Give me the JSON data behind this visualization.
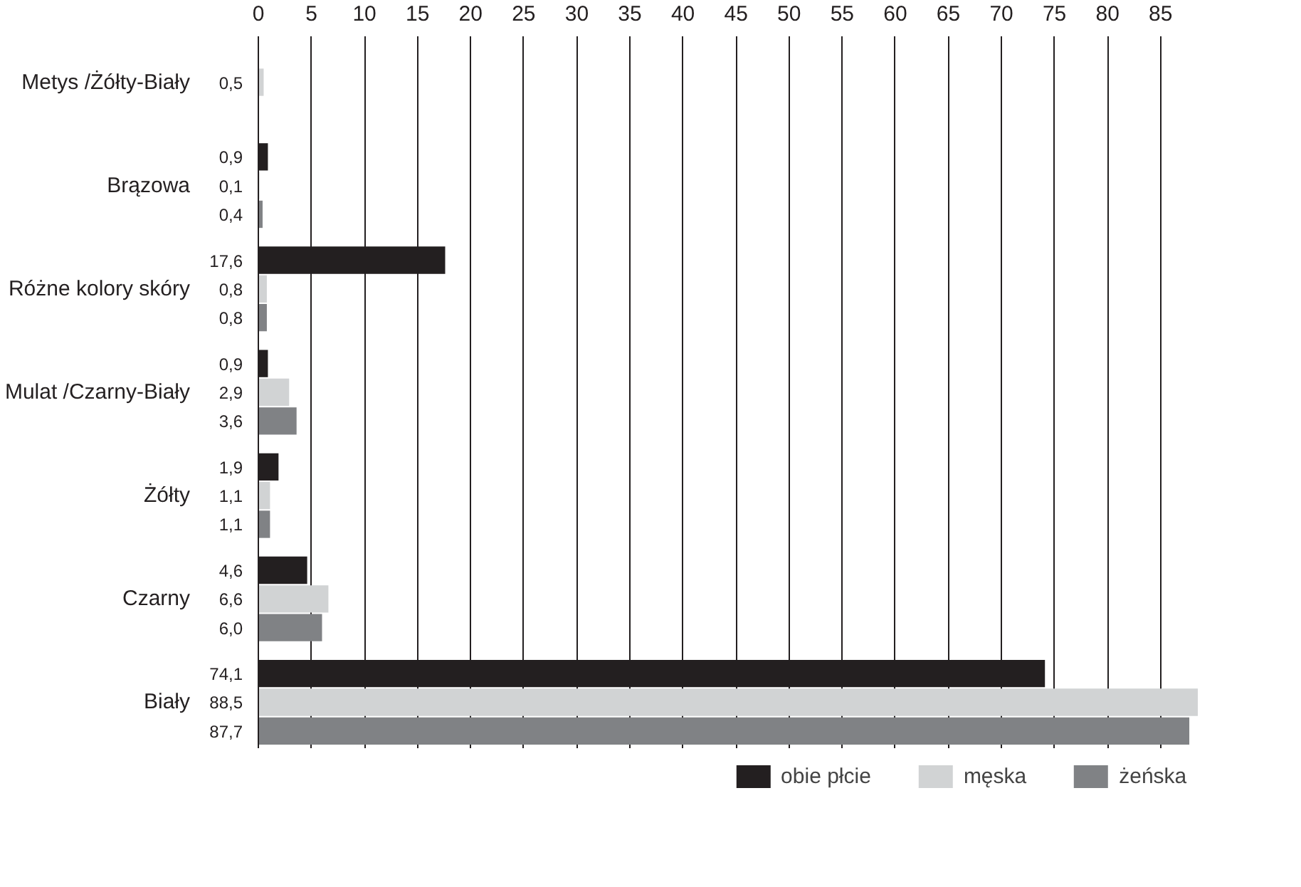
{
  "chart_data": {
    "type": "bar",
    "orientation": "horizontal",
    "categories": [
      "Metys /Żółty-Biały",
      "Brązowa",
      "Różne kolory skóry",
      "Mulat /Czarny-Biały",
      "Żółty",
      "Czarny",
      "Biały"
    ],
    "series": [
      {
        "name": "obie płcie",
        "color": "#231f20",
        "values": [
          null,
          0.9,
          17.6,
          0.9,
          1.9,
          4.6,
          74.1
        ],
        "value_labels": [
          null,
          "0,9",
          "17,6",
          "0,9",
          "1,9",
          "4,6",
          "74,1"
        ]
      },
      {
        "name": "męska",
        "color": "#d1d3d4",
        "values": [
          0.5,
          0.1,
          0.8,
          2.9,
          1.1,
          6.6,
          88.5
        ],
        "value_labels": [
          "0,5",
          "0,1",
          "0,8",
          "2,9",
          "1,1",
          "6,6",
          "88,5"
        ]
      },
      {
        "name": "żeńska",
        "color": "#808285",
        "values": [
          null,
          0.4,
          0.8,
          3.6,
          1.1,
          6.0,
          87.7
        ],
        "value_labels": [
          null,
          "0,4",
          "0,8",
          "3,6",
          "1,1",
          "6,0",
          "87,7"
        ]
      }
    ],
    "xlim": [
      0,
      88.5
    ],
    "xticks": [
      0,
      5,
      10,
      15,
      20,
      25,
      30,
      35,
      40,
      45,
      50,
      55,
      60,
      65,
      70,
      75,
      80,
      85
    ],
    "grid": "x",
    "legend": "bottom"
  }
}
